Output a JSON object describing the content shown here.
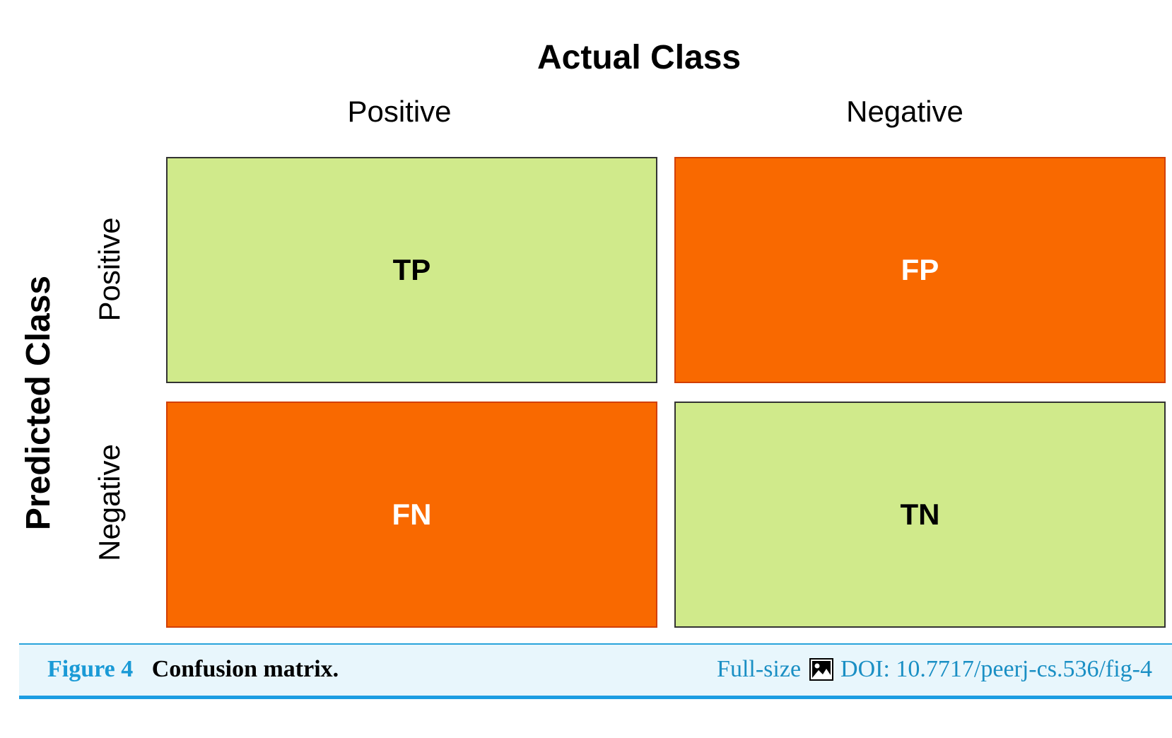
{
  "diagram": {
    "actual_title": "Actual Class",
    "predicted_title": "Predicted Class",
    "columns": [
      "Positive",
      "Negative"
    ],
    "rows": [
      "Positive",
      "Negative"
    ],
    "cells": {
      "tp": {
        "label": "TP",
        "fill": "#d0ea8b",
        "text_color": "#000000",
        "border": "#333333"
      },
      "fp": {
        "label": "FP",
        "fill": "#f96900",
        "text_color": "#ffffff",
        "border": "#d23f00"
      },
      "fn": {
        "label": "FN",
        "fill": "#f96900",
        "text_color": "#ffffff",
        "border": "#d23f00"
      },
      "tn": {
        "label": "TN",
        "fill": "#d0ea8b",
        "text_color": "#000000",
        "border": "#333333"
      }
    }
  },
  "caption": {
    "figure_number": "Figure 4",
    "title": "Confusion matrix.",
    "full_size": "Full-size",
    "icon": "image-icon",
    "doi": "DOI: 10.7717/peerj-cs.536/fig-4"
  }
}
